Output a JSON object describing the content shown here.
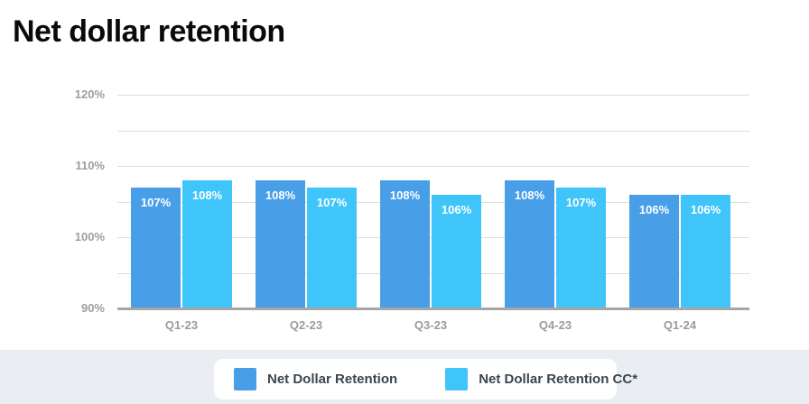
{
  "title": "Net dollar retention",
  "colors": {
    "series_primary": "#489FE7",
    "series_secondary": "#40C5FA",
    "axis_text": "#9e9e9e",
    "gridline": "#dcdcdc",
    "baseline": "#a6a6a6",
    "bar_value_text": "#ffffff",
    "footer_background": "#eaedf1",
    "legend_text": "#3b4650",
    "title_text": "#0a0a0a"
  },
  "chart_data": {
    "type": "bar",
    "title": "Net dollar retention",
    "categories": [
      "Q1-23",
      "Q2-23",
      "Q3-23",
      "Q4-23",
      "Q1-24"
    ],
    "series": [
      {
        "name": "Net Dollar Retention",
        "color": "#489FE7",
        "values": [
          107,
          108,
          108,
          108,
          106
        ]
      },
      {
        "name": "Net Dollar Retention CC*",
        "color": "#40C5FA",
        "values": [
          108,
          107,
          106,
          107,
          106
        ]
      }
    ],
    "value_suffix": "%",
    "bar_labels": [
      [
        "107%",
        "108%",
        "108%",
        "108%",
        "106%"
      ],
      [
        "108%",
        "107%",
        "106%",
        "107%",
        "106%"
      ]
    ],
    "xlabel": "",
    "ylabel": "",
    "ylim": [
      90,
      120
    ],
    "grid_step": 5,
    "y_ticks_labeled": [
      {
        "value": 120,
        "label": "120%"
      },
      {
        "value": 110,
        "label": "110%"
      },
      {
        "value": 100,
        "label": "100%"
      },
      {
        "value": 90,
        "label": "90%"
      }
    ],
    "grid": true,
    "legend_position": "bottom"
  },
  "legend": {
    "items": [
      {
        "label": "Net Dollar Retention",
        "color": "#489FE7"
      },
      {
        "label": "Net Dollar Retention CC*",
        "color": "#40C5FA"
      }
    ]
  }
}
